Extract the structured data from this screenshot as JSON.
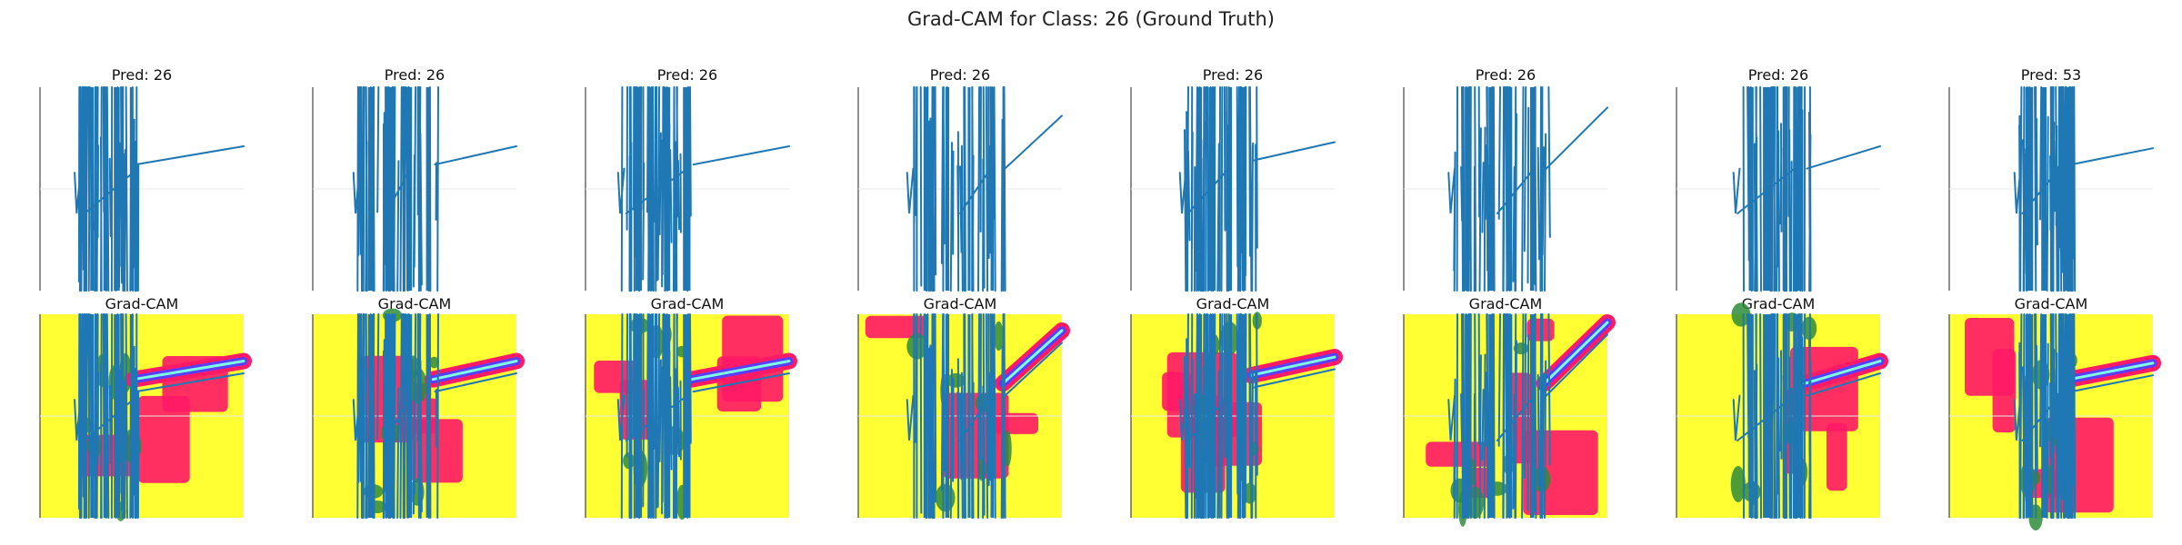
{
  "figure": {
    "title": "Grad-CAM for Class: 26 (Ground Truth)"
  },
  "colors": {
    "signal": "#1f77b4",
    "heat_low": "#ffff33",
    "heat_high": "#ff1a66",
    "heat_mid_green": "#2e8b3a",
    "heat_cyan": "#7fffe0",
    "heat_blue": "#5a3cff",
    "axis": "#444444",
    "grid": "#e8e8e8"
  },
  "chart_data": {
    "type": "line",
    "panels": [
      {
        "top_title": "Pred: 26",
        "bottom_title": "Grad-CAM",
        "variant": 0
      },
      {
        "top_title": "Pred: 26",
        "bottom_title": "Grad-CAM",
        "variant": 1
      },
      {
        "top_title": "Pred: 26",
        "bottom_title": "Grad-CAM",
        "variant": 2
      },
      {
        "top_title": "Pred: 26",
        "bottom_title": "Grad-CAM",
        "variant": 3
      },
      {
        "top_title": "Pred: 26",
        "bottom_title": "Grad-CAM",
        "variant": 4
      },
      {
        "top_title": "Pred: 26",
        "bottom_title": "Grad-CAM",
        "variant": 5
      },
      {
        "top_title": "Pred: 26",
        "bottom_title": "Grad-CAM",
        "variant": 6
      },
      {
        "top_title": "Pred: 53",
        "bottom_title": "Grad-CAM",
        "variant": 7
      }
    ]
  }
}
